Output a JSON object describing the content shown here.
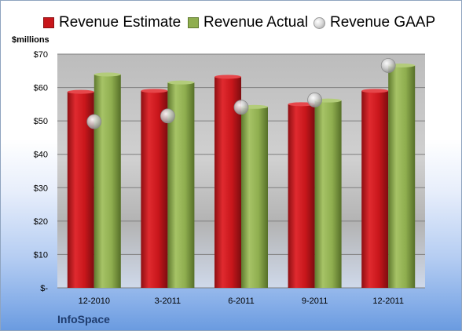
{
  "legend": {
    "estimate": "Revenue Estimate",
    "actual": "Revenue Actual",
    "gaap": "Revenue GAAP"
  },
  "y_unit": "$millions",
  "company": "InfoSpace",
  "colors": {
    "estimate": "#c8161b",
    "actual": "#8fae4f",
    "gaap": "#bdbdbd"
  },
  "chart_data": {
    "type": "bar",
    "categories": [
      "12-2010",
      "3-2011",
      "6-2011",
      "9-2011",
      "12-2011"
    ],
    "series": [
      {
        "name": "Revenue Estimate",
        "values": [
          58.7,
          59.0,
          63.2,
          55.0,
          59.0
        ]
      },
      {
        "name": "Revenue Actual",
        "values": [
          63.9,
          61.5,
          54.2,
          56.1,
          66.6
        ]
      },
      {
        "name": "Revenue GAAP",
        "values": [
          49.8,
          51.5,
          54.1,
          56.3,
          66.6
        ]
      }
    ],
    "ylim": [
      0,
      70
    ],
    "yticks": [
      0,
      10,
      20,
      30,
      40,
      50,
      60,
      70
    ],
    "ytick_labels": [
      "$-",
      "$10",
      "$20",
      "$30",
      "$40",
      "$50",
      "$60",
      "$70"
    ],
    "xlabel": "",
    "ylabel": "$millions",
    "grid": true,
    "legend_position": "top"
  }
}
